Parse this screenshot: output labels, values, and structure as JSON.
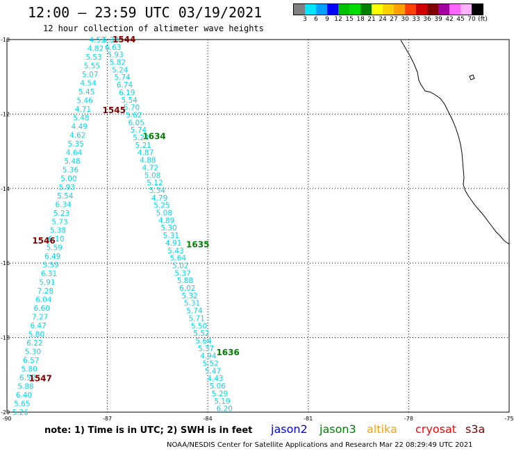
{
  "title": "12:00 – 23:59 UTC 03/19/2021",
  "subtitle": "12 hour collection of altimeter wave heights",
  "colorbar": {
    "colors": [
      "#808080",
      "#00e5ff",
      "#00a0ff",
      "#0000ff",
      "#00c000",
      "#00dd00",
      "#008000",
      "#ffff00",
      "#ffd000",
      "#ffa000",
      "#ff4000",
      "#d00000",
      "#800000",
      "#a000a0",
      "#ff66ff",
      "#ffb0ff",
      "#000000"
    ],
    "labels": [
      "3",
      "6",
      "9",
      "12",
      "15",
      "18",
      "21",
      "24",
      "27",
      "30",
      "33",
      "36",
      "39",
      "42",
      "45",
      "70",
      "(ft)"
    ]
  },
  "map_extent": {
    "lon": [
      -90,
      -75
    ],
    "lat": [
      -20,
      -10
    ]
  },
  "axes": {
    "y_ticks": [
      "-10",
      "-12",
      "-14",
      "-16",
      "-18",
      "-20"
    ],
    "x_ticks": [
      "-90",
      "-87",
      "-84",
      "-81",
      "-78",
      "-75"
    ]
  },
  "passes": [
    {
      "label": "1544",
      "color": "#800000",
      "lon": -86.5,
      "lat": -10.0
    },
    {
      "label": "1545",
      "color": "#800000",
      "lon": -86.8,
      "lat": -11.9
    },
    {
      "label": "1546",
      "color": "#800000",
      "lon": -88.9,
      "lat": -15.4
    },
    {
      "label": "1547",
      "color": "#800000",
      "lon": -89.0,
      "lat": -19.1
    },
    {
      "label": "1634",
      "color": "#008000",
      "lon": -85.6,
      "lat": -12.6
    },
    {
      "label": "1635",
      "color": "#008000",
      "lon": -84.3,
      "lat": -15.5
    },
    {
      "label": "1636",
      "color": "#008000",
      "lon": -83.4,
      "lat": -18.4
    }
  ],
  "track_a": {
    "color": "#00d8e8",
    "start": {
      "lon": -87.3,
      "lat": -10.0
    },
    "end": {
      "lon": -89.6,
      "lat": -20.0
    },
    "values": [
      "4.53",
      "4.82",
      "5.53",
      "5.55",
      "5.07",
      "4.54",
      "5.45",
      "5.46",
      "4.71",
      "5.48",
      "4.49",
      "4.62",
      "5.35",
      "4.64",
      "5.48",
      "5.36",
      "5.00",
      "5.93",
      "5.54",
      "6.34",
      "5.23",
      "5.73",
      "5.38",
      "6.10",
      "5.59",
      "6.49",
      "5.59",
      "6.31",
      "5.91",
      "7.28",
      "6.04",
      "6.60",
      "7.27",
      "6.47",
      "5.80",
      "6.22",
      "5.30",
      "6.57",
      "5.80",
      "6.52",
      "5.88",
      "6.40",
      "5.65",
      "5.26"
    ]
  },
  "track_b": {
    "color": "#00d8e8",
    "start": {
      "lon": -86.9,
      "lat": -10.0
    },
    "end": {
      "lon": -83.5,
      "lat": -19.9
    },
    "values": [
      "6.38",
      "6.63",
      "5.93",
      "5.82",
      "5.24",
      "5.74",
      "6.74",
      "6.19",
      "5.54",
      "5.70",
      "5.62",
      "6.05",
      "5.74",
      "5.24",
      "5.21",
      "4.87",
      "4.88",
      "4.72",
      "5.08",
      "5.12",
      "5.34",
      "4.79",
      "5.25",
      "5.08",
      "4.89",
      "5.30",
      "5.31",
      "4.91",
      "5.43",
      "5.64",
      "5.02",
      "5.37",
      "5.88",
      "6.02",
      "5.32",
      "5.31",
      "5.74",
      "5.71",
      "5.50",
      "5.52",
      "5.64",
      "5.37",
      "4.94",
      "5.52",
      "5.47",
      "4.43",
      "5.06",
      "5.29",
      "5.19",
      "6.20"
    ]
  },
  "coastline": {
    "color": "#000000"
  },
  "note": "note:  1) Time is in UTC;  2) SWH is in feet",
  "satellites": [
    {
      "name": "jason2",
      "color": "#0000ff"
    },
    {
      "name": "jason3",
      "color": "#008000"
    },
    {
      "name": "altika",
      "color": "#ffa000"
    },
    {
      "name": "cryosat",
      "color": "#ff0000"
    },
    {
      "name": "s3a",
      "color": "#800000"
    }
  ],
  "footer": "NOAA/NESDIS Center for Satellite Applications and Research    Mar 22 08:29:49 UTC 2021"
}
